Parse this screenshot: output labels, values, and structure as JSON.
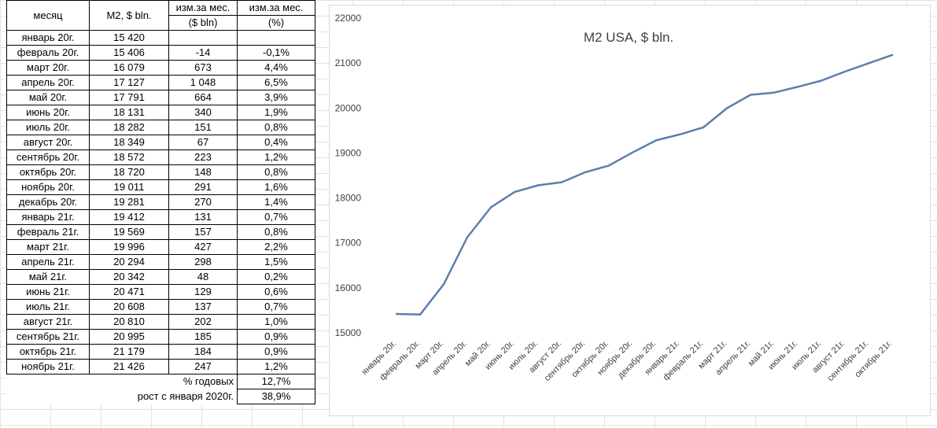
{
  "table": {
    "headers": {
      "month": "месяц",
      "m2": "M2, $ bln.",
      "chg_abs_line1": "изм.за мес.",
      "chg_abs_line2": "($ bln)",
      "chg_pct_line1": "изм.за мес.",
      "chg_pct_line2": "(%)"
    },
    "rows": [
      {
        "month": "январь 20г.",
        "m2": "15 420",
        "chg": "",
        "pct": ""
      },
      {
        "month": "февраль 20г.",
        "m2": "15 406",
        "chg": "-14",
        "pct": "-0,1%"
      },
      {
        "month": "март 20г.",
        "m2": "16 079",
        "chg": "673",
        "pct": "4,4%"
      },
      {
        "month": "апрель 20г.",
        "m2": "17 127",
        "chg": "1 048",
        "pct": "6,5%"
      },
      {
        "month": "май 20г.",
        "m2": "17 791",
        "chg": "664",
        "pct": "3,9%"
      },
      {
        "month": "июнь 20г.",
        "m2": "18 131",
        "chg": "340",
        "pct": "1,9%"
      },
      {
        "month": "июль 20г.",
        "m2": "18 282",
        "chg": "151",
        "pct": "0,8%"
      },
      {
        "month": "август 20г.",
        "m2": "18 349",
        "chg": "67",
        "pct": "0,4%"
      },
      {
        "month": "сентябрь 20г.",
        "m2": "18 572",
        "chg": "223",
        "pct": "1,2%"
      },
      {
        "month": "октябрь 20г.",
        "m2": "18 720",
        "chg": "148",
        "pct": "0,8%"
      },
      {
        "month": "ноябрь 20г.",
        "m2": "19 011",
        "chg": "291",
        "pct": "1,6%"
      },
      {
        "month": "декабрь 20г.",
        "m2": "19 281",
        "chg": "270",
        "pct": "1,4%"
      },
      {
        "month": "январь 21г.",
        "m2": "19 412",
        "chg": "131",
        "pct": "0,7%"
      },
      {
        "month": "февраль 21г.",
        "m2": "19 569",
        "chg": "157",
        "pct": "0,8%"
      },
      {
        "month": "март 21г.",
        "m2": "19 996",
        "chg": "427",
        "pct": "2,2%"
      },
      {
        "month": "апрель 21г.",
        "m2": "20 294",
        "chg": "298",
        "pct": "1,5%"
      },
      {
        "month": "май 21г.",
        "m2": "20 342",
        "chg": "48",
        "pct": "0,2%"
      },
      {
        "month": "июнь 21г.",
        "m2": "20 471",
        "chg": "129",
        "pct": "0,6%"
      },
      {
        "month": "июль 21г.",
        "m2": "20 608",
        "chg": "137",
        "pct": "0,7%"
      },
      {
        "month": "август 21г.",
        "m2": "20 810",
        "chg": "202",
        "pct": "1,0%"
      },
      {
        "month": "сентябрь 21г.",
        "m2": "20 995",
        "chg": "185",
        "pct": "0,9%"
      },
      {
        "month": "октябрь 21г.",
        "m2": "21 179",
        "chg": "184",
        "pct": "0,9%"
      },
      {
        "month": "ноябрь 21г.",
        "m2": "21 426",
        "chg": "247",
        "pct": "1,2%"
      }
    ],
    "summary": [
      {
        "label": "% годовых",
        "value": "12,7%"
      },
      {
        "label": "рост с января 2020г.",
        "value": "38,9%"
      }
    ]
  },
  "chart_data": {
    "type": "line",
    "title": "M2 USA, $ bln.",
    "xlabel": "",
    "ylabel": "",
    "ylim": [
      15000,
      22000
    ],
    "yticks": [
      15000,
      16000,
      17000,
      18000,
      19000,
      20000,
      21000,
      22000
    ],
    "grid": false,
    "legend": "none",
    "line_color": "#5b7fad",
    "categories": [
      "январь 20г.",
      "февраль 20г.",
      "март 20г.",
      "апрель 20г.",
      "май 20г.",
      "июнь 20г.",
      "июль 20г.",
      "август 20г.",
      "сентябрь 20г.",
      "октябрь 20г.",
      "ноябрь 20г.",
      "декабрь 20г.",
      "январь 21г.",
      "февраль 21г.",
      "март 21г.",
      "апрель 21г.",
      "май 21г.",
      "июнь 21г.",
      "июль 21г.",
      "август 21г.",
      "сентябрь 21г.",
      "октябрь 21г."
    ],
    "values": [
      15420,
      15406,
      16079,
      17127,
      17791,
      18131,
      18282,
      18349,
      18572,
      18720,
      19011,
      19281,
      19412,
      19569,
      19996,
      20294,
      20342,
      20471,
      20608,
      20810,
      20995,
      21179
    ]
  }
}
